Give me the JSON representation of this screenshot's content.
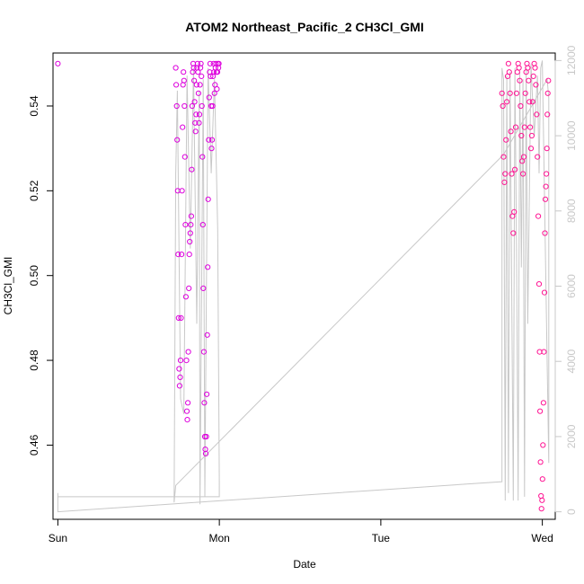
{
  "chart_data": {
    "type": "scatter",
    "title": "ATOM2 Northeast_Pacific_2 CH3Cl_GMI",
    "xlabel": "Date",
    "ylabel": "CH3Cl_GMI",
    "x_axis": {
      "range": [
        -0.03,
        3.08
      ],
      "ticks": [
        {
          "value": 0,
          "label": "Sun"
        },
        {
          "value": 1,
          "label": "Mon"
        },
        {
          "value": 2,
          "label": "Tue"
        },
        {
          "value": 3,
          "label": "Wed"
        }
      ]
    },
    "y_axis": {
      "range": [
        0.4425,
        0.5525
      ],
      "ticks": [
        0.46,
        0.48,
        0.5,
        0.52,
        0.54
      ]
    },
    "y2_axis": {
      "range": [
        -200,
        12200
      ],
      "ticks": [
        0,
        2000,
        4000,
        6000,
        8000,
        10000,
        12000
      ],
      "color": "#c8c8c8"
    },
    "grid": false,
    "legend": "none",
    "colors": {
      "points_early": "#dd00dd",
      "points_late": "#ff1493",
      "line": "#c8c8c8"
    },
    "series": [
      {
        "kind": "points",
        "color": "#dd00dd",
        "points": [
          [
            0.0,
            0.55
          ],
          [
            0.73,
            0.549
          ],
          [
            0.733,
            0.545
          ],
          [
            0.736,
            0.54
          ],
          [
            0.739,
            0.532
          ],
          [
            0.742,
            0.52
          ],
          [
            0.745,
            0.505
          ],
          [
            0.748,
            0.49
          ],
          [
            0.751,
            0.478
          ],
          [
            0.754,
            0.474
          ],
          [
            0.757,
            0.476
          ],
          [
            0.76,
            0.48
          ],
          [
            0.763,
            0.49
          ],
          [
            0.766,
            0.505
          ],
          [
            0.769,
            0.52
          ],
          [
            0.772,
            0.535
          ],
          [
            0.775,
            0.545
          ],
          [
            0.778,
            0.548
          ],
          [
            0.781,
            0.546
          ],
          [
            0.784,
            0.54
          ],
          [
            0.787,
            0.528
          ],
          [
            0.79,
            0.512
          ],
          [
            0.793,
            0.495
          ],
          [
            0.796,
            0.48
          ],
          [
            0.799,
            0.468
          ],
          [
            0.802,
            0.466
          ],
          [
            0.805,
            0.47
          ],
          [
            0.808,
            0.482
          ],
          [
            0.811,
            0.497
          ],
          [
            0.814,
            0.505
          ],
          [
            0.817,
            0.508
          ],
          [
            0.82,
            0.51
          ],
          [
            0.823,
            0.512
          ],
          [
            0.826,
            0.514
          ],
          [
            0.829,
            0.525
          ],
          [
            0.832,
            0.54
          ],
          [
            0.835,
            0.548
          ],
          [
            0.838,
            0.55
          ],
          [
            0.841,
            0.549
          ],
          [
            0.844,
            0.546
          ],
          [
            0.847,
            0.541
          ],
          [
            0.85,
            0.536
          ],
          [
            0.853,
            0.534
          ],
          [
            0.856,
            0.538
          ],
          [
            0.859,
            0.545
          ],
          [
            0.862,
            0.549
          ],
          [
            0.865,
            0.55
          ],
          [
            0.868,
            0.548
          ],
          [
            0.871,
            0.543
          ],
          [
            0.874,
            0.536
          ],
          [
            0.877,
            0.538
          ],
          [
            0.88,
            0.545
          ],
          [
            0.883,
            0.549
          ],
          [
            0.886,
            0.55
          ],
          [
            0.889,
            0.547
          ],
          [
            0.892,
            0.54
          ],
          [
            0.895,
            0.528
          ],
          [
            0.898,
            0.512
          ],
          [
            0.901,
            0.497
          ],
          [
            0.904,
            0.482
          ],
          [
            0.907,
            0.47
          ],
          [
            0.91,
            0.462
          ],
          [
            0.913,
            0.459
          ],
          [
            0.916,
            0.458
          ],
          [
            0.919,
            0.462
          ],
          [
            0.922,
            0.472
          ],
          [
            0.925,
            0.486
          ],
          [
            0.928,
            0.502
          ],
          [
            0.931,
            0.518
          ],
          [
            0.934,
            0.532
          ],
          [
            0.937,
            0.542
          ],
          [
            0.94,
            0.548
          ],
          [
            0.943,
            0.55
          ],
          [
            0.946,
            0.547
          ],
          [
            0.949,
            0.54
          ],
          [
            0.952,
            0.53
          ],
          [
            0.955,
            0.532
          ],
          [
            0.958,
            0.54
          ],
          [
            0.961,
            0.547
          ],
          [
            0.964,
            0.55
          ],
          [
            0.967,
            0.548
          ],
          [
            0.97,
            0.543
          ],
          [
            0.973,
            0.545
          ],
          [
            0.976,
            0.549
          ],
          [
            0.979,
            0.55
          ],
          [
            0.982,
            0.548
          ],
          [
            0.985,
            0.544
          ],
          [
            0.988,
            0.548
          ],
          [
            0.991,
            0.55
          ],
          [
            0.994,
            0.549
          ],
          [
            0.997,
            0.55
          ]
        ]
      },
      {
        "kind": "points",
        "color": "#ff1493",
        "points": [
          [
            2.75,
            0.543
          ],
          [
            2.755,
            0.54
          ],
          [
            2.76,
            0.528
          ],
          [
            2.765,
            0.522
          ],
          [
            2.77,
            0.524
          ],
          [
            2.775,
            0.532
          ],
          [
            2.78,
            0.541
          ],
          [
            2.785,
            0.547
          ],
          [
            2.79,
            0.55
          ],
          [
            2.795,
            0.548
          ],
          [
            2.8,
            0.543
          ],
          [
            2.805,
            0.534
          ],
          [
            2.81,
            0.524
          ],
          [
            2.815,
            0.514
          ],
          [
            2.82,
            0.51
          ],
          [
            2.825,
            0.515
          ],
          [
            2.83,
            0.525
          ],
          [
            2.835,
            0.535
          ],
          [
            2.84,
            0.543
          ],
          [
            2.845,
            0.548
          ],
          [
            2.85,
            0.55
          ],
          [
            2.855,
            0.549
          ],
          [
            2.86,
            0.546
          ],
          [
            2.865,
            0.54
          ],
          [
            2.87,
            0.533
          ],
          [
            2.875,
            0.527
          ],
          [
            2.88,
            0.524
          ],
          [
            2.885,
            0.528
          ],
          [
            2.89,
            0.535
          ],
          [
            2.895,
            0.543
          ],
          [
            2.9,
            0.548
          ],
          [
            2.905,
            0.55
          ],
          [
            2.91,
            0.549
          ],
          [
            2.915,
            0.546
          ],
          [
            2.92,
            0.541
          ],
          [
            2.925,
            0.535
          ],
          [
            2.93,
            0.53
          ],
          [
            2.935,
            0.533
          ],
          [
            2.94,
            0.541
          ],
          [
            2.945,
            0.547
          ],
          [
            2.95,
            0.55
          ],
          [
            2.955,
            0.549
          ],
          [
            2.96,
            0.545
          ],
          [
            2.965,
            0.538
          ],
          [
            2.97,
            0.528
          ],
          [
            2.975,
            0.514
          ],
          [
            2.98,
            0.498
          ],
          [
            2.983,
            0.482
          ],
          [
            2.986,
            0.468
          ],
          [
            2.989,
            0.456
          ],
          [
            2.992,
            0.448
          ],
          [
            2.995,
            0.445
          ],
          [
            2.998,
            0.447
          ],
          [
            3.001,
            0.452
          ],
          [
            3.004,
            0.46
          ],
          [
            3.007,
            0.47
          ],
          [
            3.01,
            0.482
          ],
          [
            3.013,
            0.496
          ],
          [
            3.016,
            0.51
          ],
          [
            3.019,
            0.518
          ],
          [
            3.022,
            0.521
          ],
          [
            3.025,
            0.524
          ],
          [
            3.028,
            0.53
          ],
          [
            3.031,
            0.538
          ],
          [
            3.034,
            0.543
          ],
          [
            3.037,
            0.546
          ]
        ]
      },
      {
        "kind": "line",
        "axis": "right",
        "color": "#c8c8c8",
        "points": [
          [
            0.0,
            500
          ],
          [
            0.0,
            0
          ],
          [
            2.75,
            800
          ],
          [
            2.75,
            11800
          ],
          [
            2.76,
            11500
          ],
          [
            2.77,
            300
          ],
          [
            2.78,
            11600
          ],
          [
            2.79,
            500
          ],
          [
            2.8,
            11700
          ],
          [
            2.81,
            6000
          ],
          [
            2.82,
            300
          ],
          [
            2.83,
            11800
          ],
          [
            2.84,
            7000
          ],
          [
            2.85,
            300
          ],
          [
            2.86,
            11700
          ],
          [
            2.87,
            6500
          ],
          [
            2.88,
            11500
          ],
          [
            2.89,
            400
          ],
          [
            2.9,
            11800
          ],
          [
            2.91,
            5000
          ],
          [
            2.93,
            11900
          ],
          [
            2.95,
            10000
          ],
          [
            2.97,
            11600
          ],
          [
            2.98,
            9000
          ],
          [
            2.99,
            11800
          ],
          [
            3.0,
            12000
          ],
          [
            3.04,
            1300
          ],
          [
            3.04,
            11000
          ],
          [
            3.03,
            11500
          ],
          [
            2.76,
            9500
          ],
          [
            0.73,
            700
          ],
          [
            0.72,
            250
          ],
          [
            0.73,
            9000
          ],
          [
            0.74,
            11200
          ],
          [
            0.76,
            3000
          ],
          [
            0.78,
            2600
          ],
          [
            0.8,
            11600
          ],
          [
            0.82,
            7000
          ],
          [
            0.84,
            11800
          ],
          [
            0.86,
            5000
          ],
          [
            0.875,
            11200
          ],
          [
            0.88,
            200
          ],
          [
            0.9,
            11500
          ],
          [
            0.91,
            400
          ],
          [
            0.93,
            11800
          ],
          [
            0.95,
            9000
          ],
          [
            0.97,
            11500
          ],
          [
            0.99,
            7500
          ],
          [
            1.0,
            800
          ],
          [
            1.0,
            400
          ],
          [
            0.0,
            400
          ]
        ]
      }
    ]
  }
}
